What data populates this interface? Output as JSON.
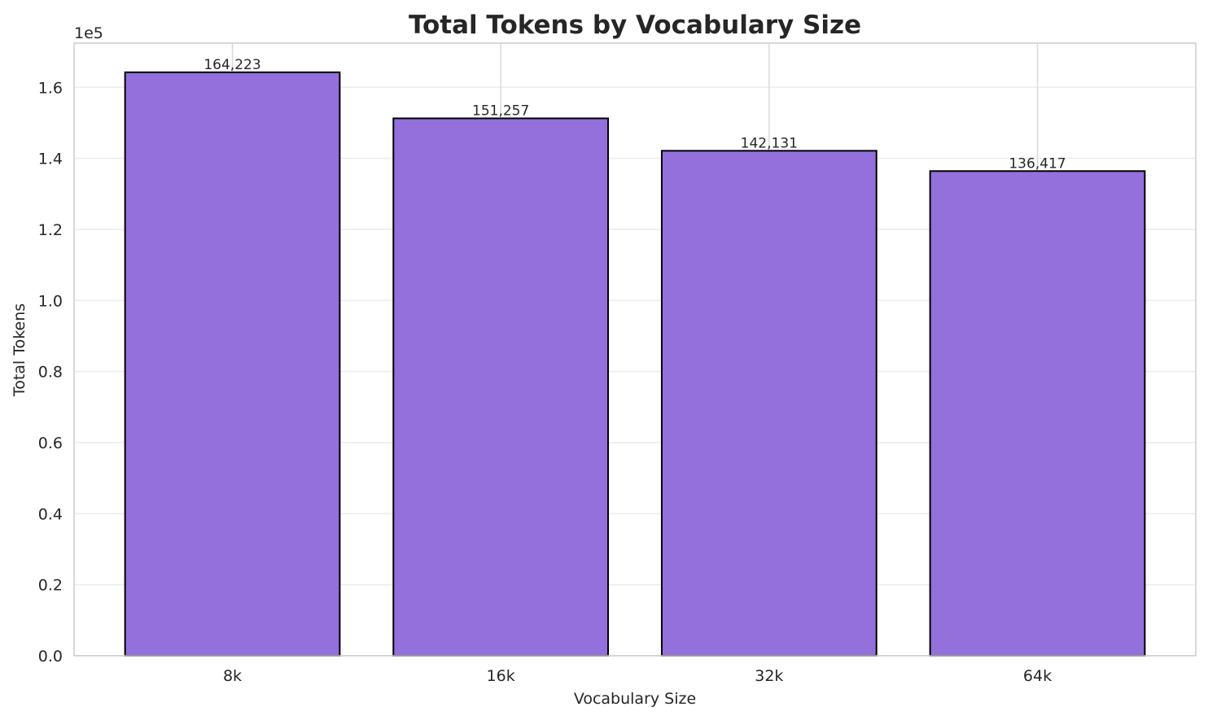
{
  "chart_data": {
    "type": "bar",
    "title": "Total Tokens by Vocabulary Size",
    "xlabel": "Vocabulary Size",
    "ylabel": "Total Tokens",
    "categories": [
      "8k",
      "16k",
      "32k",
      "64k"
    ],
    "values": [
      164223,
      151257,
      142131,
      136417
    ],
    "data_labels": [
      "164,223",
      "151,257",
      "142,131",
      "136,417"
    ],
    "ylim": [
      0,
      172434
    ],
    "y_offset_label": "1e5",
    "y_ticks": [
      0,
      20000,
      40000,
      60000,
      80000,
      100000,
      120000,
      140000,
      160000
    ],
    "y_tick_labels": [
      "0.0",
      "0.2",
      "0.4",
      "0.6",
      "0.8",
      "1.0",
      "1.2",
      "1.4",
      "1.6"
    ],
    "grid": true,
    "colors": {
      "bar": "#9370DB",
      "edge": "#000000",
      "grid_x": "#d9d9d9",
      "grid_y": "#ececec",
      "spine": "#cccccc"
    }
  }
}
